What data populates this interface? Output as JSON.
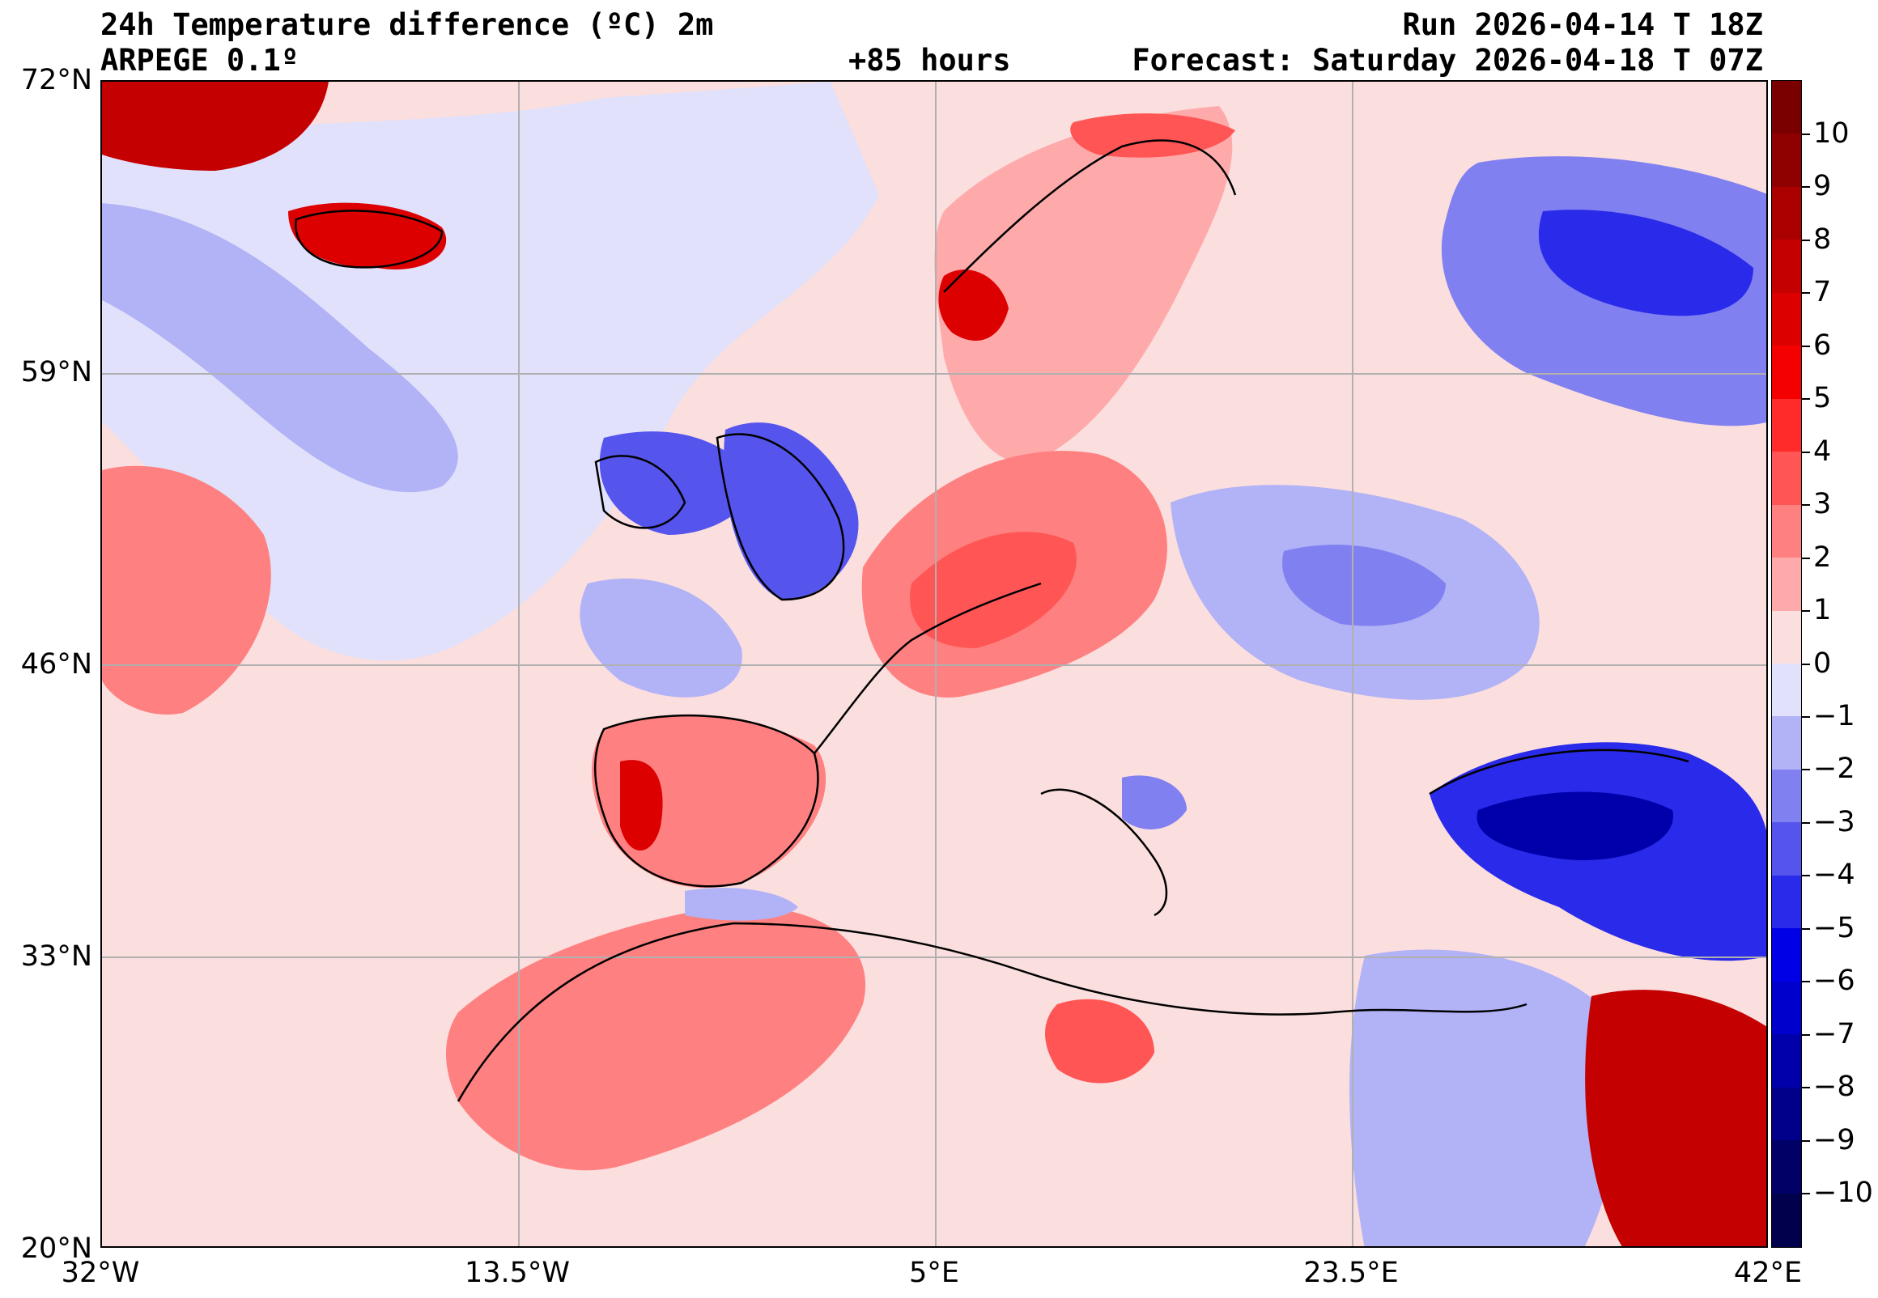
{
  "header": {
    "title": "24h Temperature difference (ºC) 2m",
    "model": "ARPEGE 0.1º",
    "lead_time": "+85 hours",
    "run": "Run 2026-04-14 T 18Z",
    "forecast": "Forecast: Saturday 2026-04-18 T 07Z"
  },
  "axes": {
    "lat_labels": [
      "72°N",
      "59°N",
      "46°N",
      "33°N",
      "20°N"
    ],
    "lon_labels": [
      "32°W",
      "13.5°W",
      "5°E",
      "23.5°E",
      "42°E"
    ]
  },
  "colorbar": {
    "ticks": [
      "10",
      "9",
      "8",
      "7",
      "6",
      "5",
      "4",
      "3",
      "2",
      "1",
      "0",
      "−1",
      "−2",
      "−3",
      "−4",
      "−5",
      "−6",
      "−7",
      "−8",
      "−9",
      "−10"
    ],
    "colors_top_to_bottom": [
      "#7a0000",
      "#8f0000",
      "#aa0000",
      "#c40000",
      "#dd0000",
      "#f50000",
      "#ff2a2a",
      "#ff5555",
      "#ff8080",
      "#ffaaaa",
      "#fbdede",
      "#e1e1fb",
      "#b2b2f7",
      "#8080f0",
      "#5555ee",
      "#2a2aea",
      "#0000e6",
      "#0000cc",
      "#0000aa",
      "#00008a",
      "#000066",
      "#00004c"
    ]
  },
  "map": {
    "background_color": "#fbdede",
    "gridline_color": "#b0b0b0"
  }
}
